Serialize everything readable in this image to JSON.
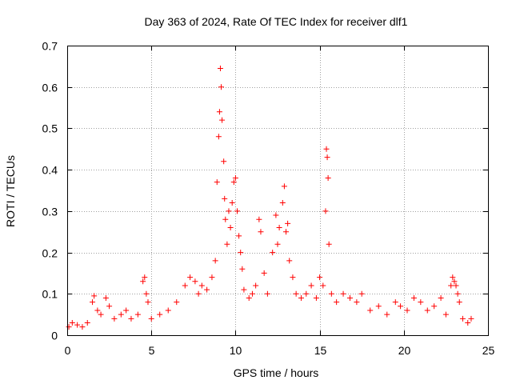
{
  "chart_data": {
    "type": "scatter",
    "title": "Day 363 of 2024, Rate Of TEC Index for receiver dlf1",
    "xlabel": "GPS time / hours",
    "ylabel": "ROTI / TECUs",
    "xlim": [
      0,
      25
    ],
    "ylim": [
      0,
      0.7
    ],
    "xticks": [
      0,
      5,
      10,
      15,
      20,
      25
    ],
    "xtick_labels": [
      "0",
      "5",
      "10",
      "15",
      "20",
      "25"
    ],
    "yticks": [
      0,
      0.1,
      0.2,
      0.3,
      0.4,
      0.5,
      0.6,
      0.7
    ],
    "ytick_labels": [
      "0",
      "0.1",
      "0.2",
      "0.3",
      "0.4",
      "0.5",
      "0.6",
      "0.7"
    ],
    "grid": true,
    "marker": "+",
    "color": "#ff0000",
    "series": [
      {
        "name": "ROTI",
        "points": [
          [
            0.1,
            0.02
          ],
          [
            0.3,
            0.03
          ],
          [
            0.6,
            0.025
          ],
          [
            0.9,
            0.02
          ],
          [
            1.2,
            0.03
          ],
          [
            1.5,
            0.08
          ],
          [
            1.6,
            0.095
          ],
          [
            1.8,
            0.06
          ],
          [
            2.0,
            0.05
          ],
          [
            2.3,
            0.09
          ],
          [
            2.5,
            0.07
          ],
          [
            2.8,
            0.04
          ],
          [
            3.2,
            0.05
          ],
          [
            3.5,
            0.06
          ],
          [
            3.8,
            0.04
          ],
          [
            4.2,
            0.05
          ],
          [
            4.5,
            0.13
          ],
          [
            4.6,
            0.14
          ],
          [
            4.7,
            0.1
          ],
          [
            4.8,
            0.08
          ],
          [
            5.0,
            0.04
          ],
          [
            5.5,
            0.05
          ],
          [
            6.0,
            0.06
          ],
          [
            6.5,
            0.08
          ],
          [
            7.0,
            0.12
          ],
          [
            7.3,
            0.14
          ],
          [
            7.6,
            0.13
          ],
          [
            7.8,
            0.1
          ],
          [
            8.0,
            0.12
          ],
          [
            8.3,
            0.11
          ],
          [
            8.6,
            0.14
          ],
          [
            8.8,
            0.18
          ],
          [
            8.9,
            0.37
          ],
          [
            9.0,
            0.48
          ],
          [
            9.05,
            0.54
          ],
          [
            9.1,
            0.645
          ],
          [
            9.15,
            0.6
          ],
          [
            9.2,
            0.52
          ],
          [
            9.3,
            0.42
          ],
          [
            9.35,
            0.33
          ],
          [
            9.4,
            0.28
          ],
          [
            9.5,
            0.22
          ],
          [
            9.6,
            0.3
          ],
          [
            9.7,
            0.26
          ],
          [
            9.8,
            0.32
          ],
          [
            9.9,
            0.37
          ],
          [
            10.0,
            0.38
          ],
          [
            10.1,
            0.3
          ],
          [
            10.2,
            0.24
          ],
          [
            10.3,
            0.2
          ],
          [
            10.4,
            0.16
          ],
          [
            10.5,
            0.11
          ],
          [
            10.8,
            0.09
          ],
          [
            11.0,
            0.1
          ],
          [
            11.2,
            0.12
          ],
          [
            11.4,
            0.28
          ],
          [
            11.5,
            0.25
          ],
          [
            11.7,
            0.15
          ],
          [
            11.9,
            0.1
          ],
          [
            12.2,
            0.2
          ],
          [
            12.4,
            0.29
          ],
          [
            12.5,
            0.22
          ],
          [
            12.6,
            0.26
          ],
          [
            12.8,
            0.32
          ],
          [
            12.9,
            0.36
          ],
          [
            13.0,
            0.25
          ],
          [
            13.1,
            0.27
          ],
          [
            13.2,
            0.18
          ],
          [
            13.4,
            0.14
          ],
          [
            13.6,
            0.1
          ],
          [
            13.9,
            0.09
          ],
          [
            14.2,
            0.1
          ],
          [
            14.5,
            0.12
          ],
          [
            14.8,
            0.09
          ],
          [
            15.0,
            0.14
          ],
          [
            15.2,
            0.12
          ],
          [
            15.35,
            0.3
          ],
          [
            15.4,
            0.45
          ],
          [
            15.45,
            0.43
          ],
          [
            15.5,
            0.38
          ],
          [
            15.55,
            0.22
          ],
          [
            15.7,
            0.1
          ],
          [
            16.0,
            0.08
          ],
          [
            16.4,
            0.1
          ],
          [
            16.8,
            0.09
          ],
          [
            17.2,
            0.08
          ],
          [
            17.5,
            0.1
          ],
          [
            18.0,
            0.06
          ],
          [
            18.5,
            0.07
          ],
          [
            19.0,
            0.05
          ],
          [
            19.5,
            0.08
          ],
          [
            19.8,
            0.07
          ],
          [
            20.2,
            0.06
          ],
          [
            20.6,
            0.09
          ],
          [
            21.0,
            0.08
          ],
          [
            21.4,
            0.06
          ],
          [
            21.8,
            0.07
          ],
          [
            22.2,
            0.09
          ],
          [
            22.5,
            0.05
          ],
          [
            22.8,
            0.12
          ],
          [
            22.9,
            0.14
          ],
          [
            23.0,
            0.13
          ],
          [
            23.1,
            0.12
          ],
          [
            23.2,
            0.1
          ],
          [
            23.3,
            0.08
          ],
          [
            23.5,
            0.04
          ],
          [
            23.8,
            0.03
          ],
          [
            24.0,
            0.04
          ]
        ]
      }
    ]
  }
}
